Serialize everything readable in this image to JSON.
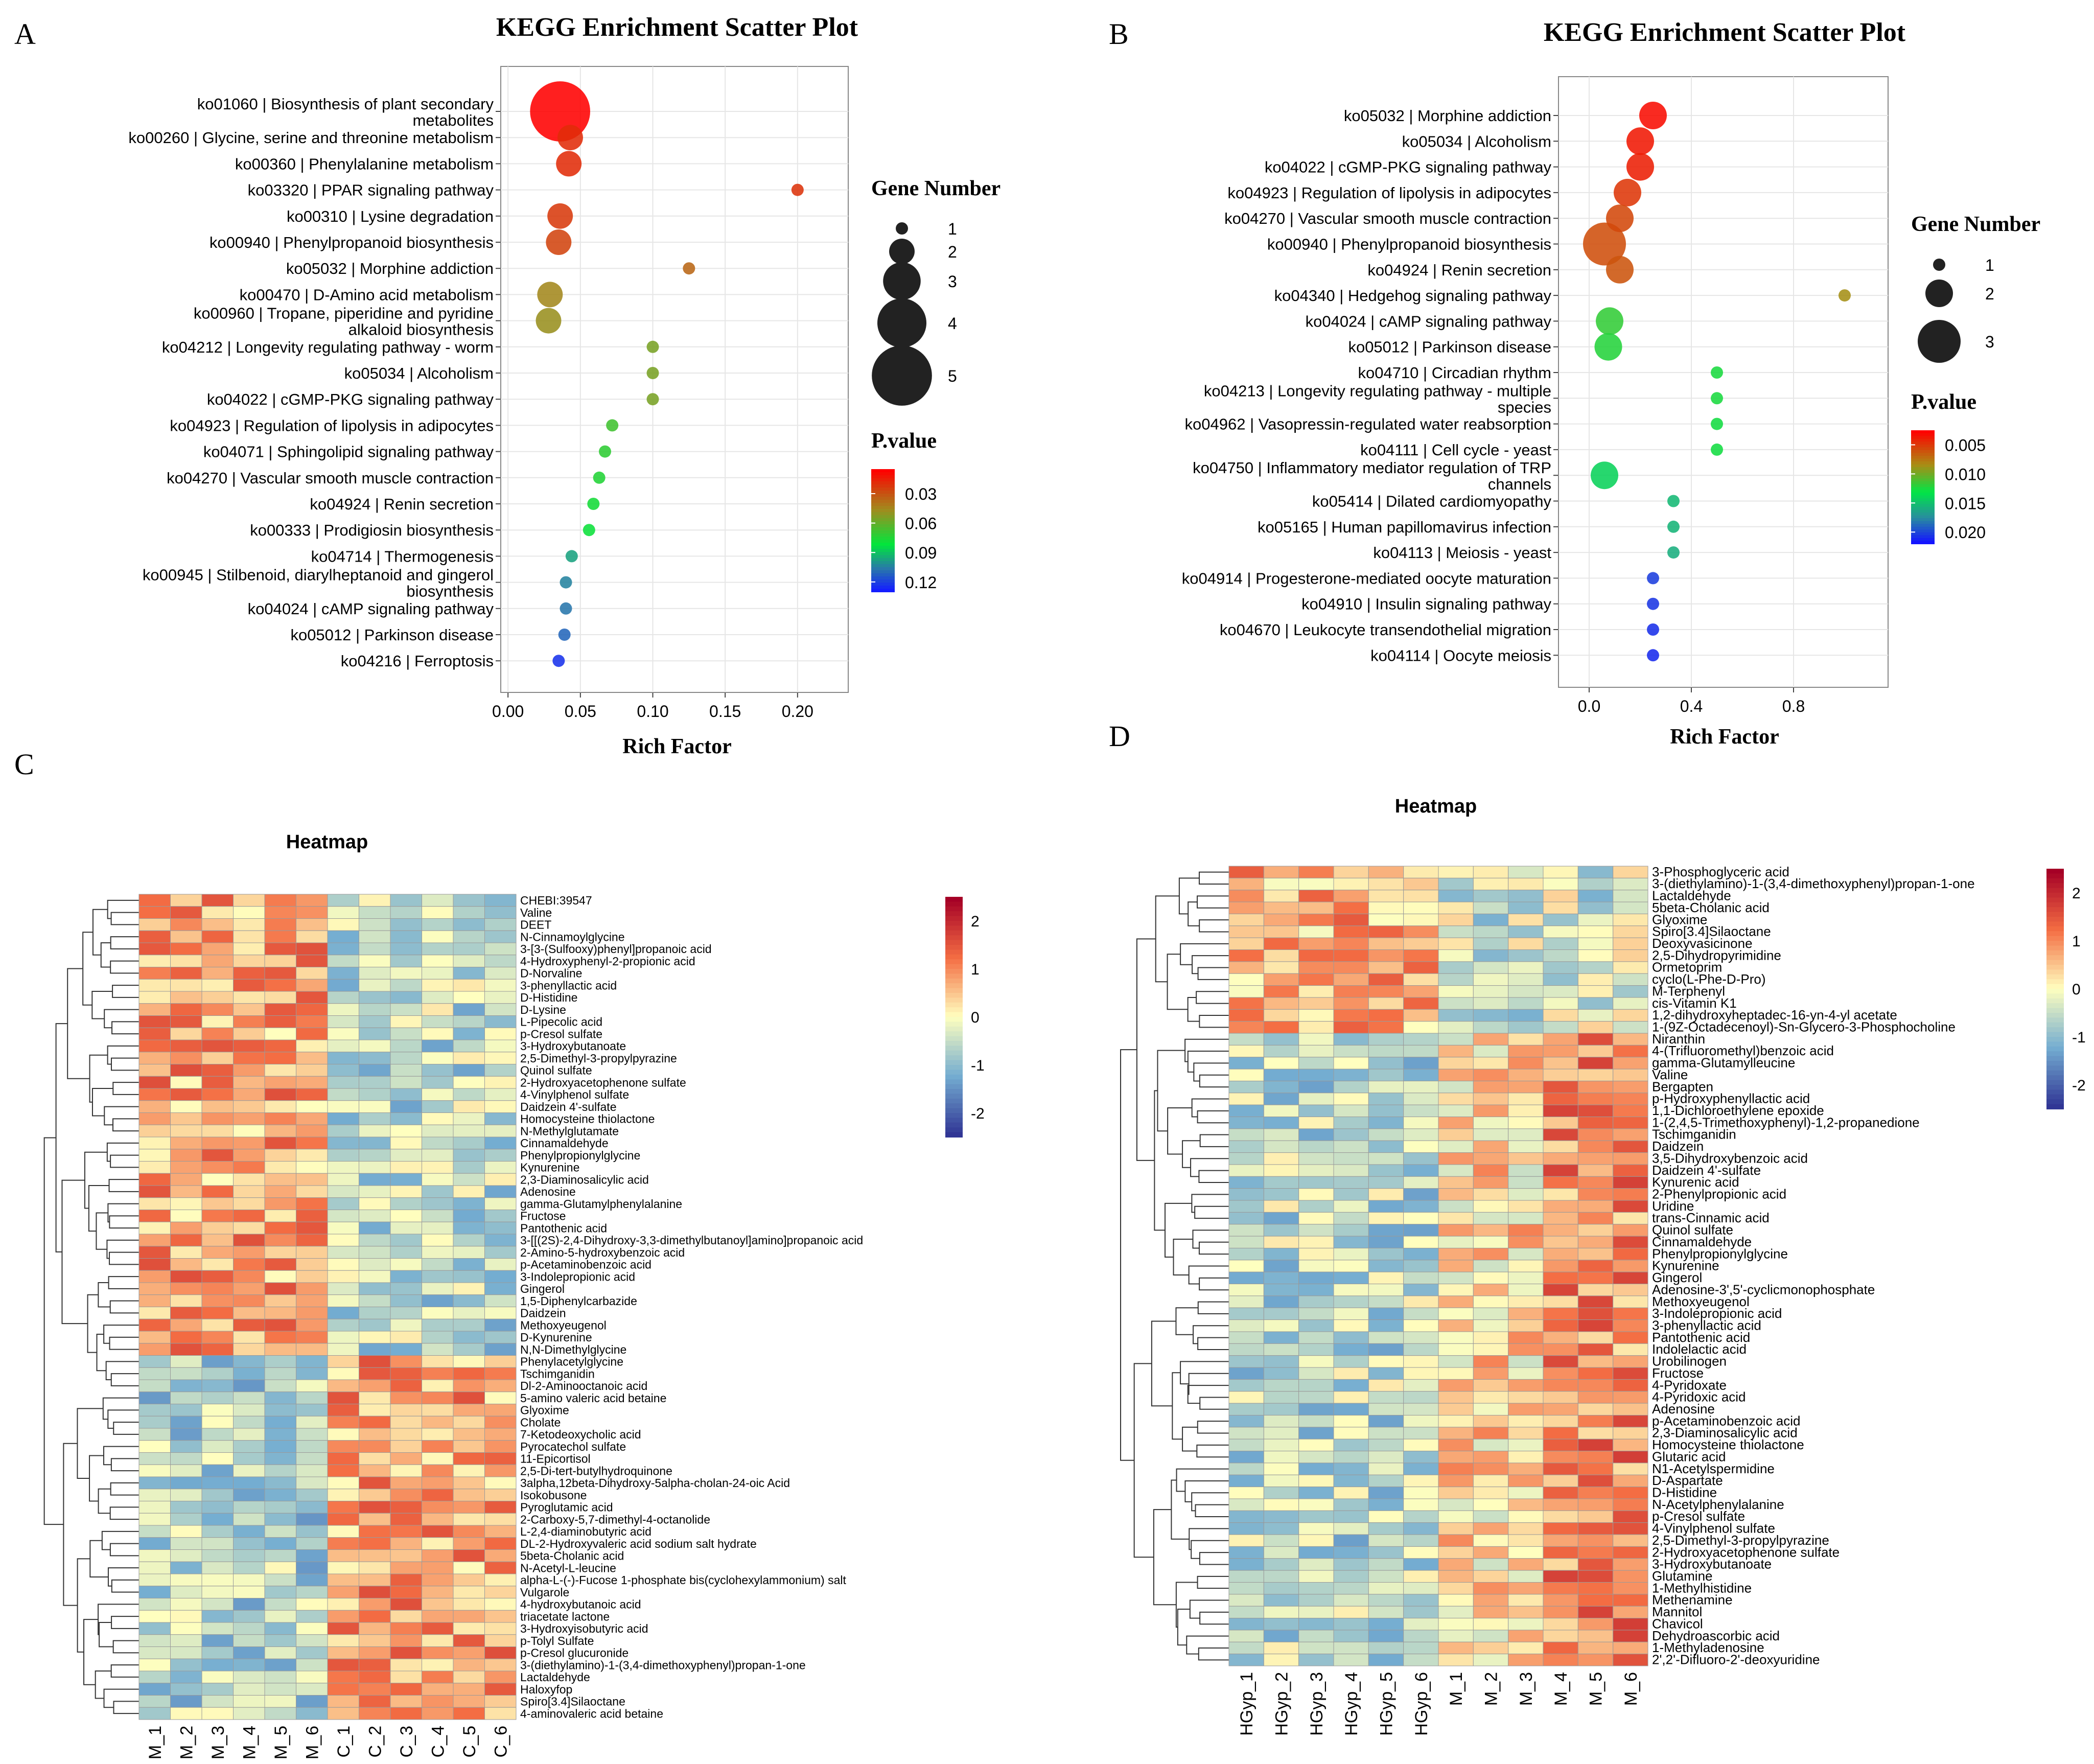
{
  "panel_labels": {
    "a": "A",
    "b": "B",
    "c": "C",
    "d": "D"
  },
  "chart_data": [
    {
      "panel": "A",
      "type": "scatter",
      "title": "KEGG Enrichment Scatter Plot",
      "xlabel": "Rich Factor",
      "xlim": [
        -0.005,
        0.235
      ],
      "xticks": [
        "0.00",
        "0.05",
        "0.10",
        "0.15",
        "0.20"
      ],
      "size_legend_title": "Gene Number",
      "size_legend": [
        "1",
        "2",
        "3",
        "4",
        "5"
      ],
      "color_legend_title": "P.value",
      "color_legend": [
        "0.03",
        "0.06",
        "0.09",
        "0.12"
      ],
      "color_range": [
        0.005,
        0.13
      ],
      "points": [
        {
          "label": "ko01060 | Biosynthesis of plant secondary",
          "label2": "metabolites",
          "x": 0.036,
          "genes": 5,
          "p": 0.005
        },
        {
          "label": "ko00260 | Glycine, serine and threonine metabolism",
          "label2": "",
          "x": 0.043,
          "genes": 2,
          "p": 0.018
        },
        {
          "label": "ko00360 | Phenylalanine metabolism",
          "label2": "",
          "x": 0.042,
          "genes": 2,
          "p": 0.018
        },
        {
          "label": "ko03320 | PPAR signaling pathway",
          "label2": "",
          "x": 0.2,
          "genes": 1,
          "p": 0.02
        },
        {
          "label": "ko00310 | Lysine degradation",
          "label2": "",
          "x": 0.036,
          "genes": 2,
          "p": 0.022
        },
        {
          "label": "ko00940 | Phenylpropanoid biosynthesis",
          "label2": "",
          "x": 0.035,
          "genes": 2,
          "p": 0.025
        },
        {
          "label": "ko05032 | Morphine addiction",
          "label2": "",
          "x": 0.125,
          "genes": 1,
          "p": 0.035
        },
        {
          "label": "ko00470 | D-Amino acid metabolism",
          "label2": "",
          "x": 0.029,
          "genes": 2,
          "p": 0.045
        },
        {
          "label": "ko00960 | Tropane, piperidine and pyridine",
          "label2": "alkaloid biosynthesis",
          "x": 0.028,
          "genes": 2,
          "p": 0.048
        },
        {
          "label": "ko04212 | Longevity regulating pathway - worm",
          "label2": "",
          "x": 0.1,
          "genes": 1,
          "p": 0.055
        },
        {
          "label": "ko05034 | Alcoholism",
          "label2": "",
          "x": 0.1,
          "genes": 1,
          "p": 0.055
        },
        {
          "label": "ko04022 | cGMP-PKG signaling pathway",
          "label2": "",
          "x": 0.1,
          "genes": 1,
          "p": 0.055
        },
        {
          "label": "ko04923 | Regulation of lipolysis in adipocytes",
          "label2": "",
          "x": 0.072,
          "genes": 1,
          "p": 0.068
        },
        {
          "label": "ko04071 | Sphingolipid signaling pathway",
          "label2": "",
          "x": 0.067,
          "genes": 1,
          "p": 0.072
        },
        {
          "label": "ko04270 | Vascular smooth muscle contraction",
          "label2": "",
          "x": 0.063,
          "genes": 1,
          "p": 0.075
        },
        {
          "label": "ko04924 | Renin secretion",
          "label2": "",
          "x": 0.059,
          "genes": 1,
          "p": 0.078
        },
        {
          "label": "ko00333 | Prodigiosin biosynthesis",
          "label2": "",
          "x": 0.056,
          "genes": 1,
          "p": 0.08
        },
        {
          "label": "ko04714 | Thermogenesis",
          "label2": "",
          "x": 0.044,
          "genes": 1,
          "p": 0.098
        },
        {
          "label": "ko00945 | Stilbenoid, diarylheptanoid and gingerol",
          "label2": "biosynthesis",
          "x": 0.04,
          "genes": 1,
          "p": 0.105
        },
        {
          "label": "ko04024 | cAMP signaling pathway",
          "label2": "",
          "x": 0.04,
          "genes": 1,
          "p": 0.108
        },
        {
          "label": "ko05012 | Parkinson disease",
          "label2": "",
          "x": 0.039,
          "genes": 1,
          "p": 0.112
        },
        {
          "label": "ko04216 | Ferroptosis",
          "label2": "",
          "x": 0.035,
          "genes": 1,
          "p": 0.125
        }
      ]
    },
    {
      "panel": "B",
      "type": "scatter",
      "title": "KEGG Enrichment Scatter Plot",
      "xlabel": "Rich Factor",
      "xlim": [
        -0.12,
        1.17
      ],
      "xticks": [
        "0.0",
        "0.4",
        "0.8"
      ],
      "size_legend_title": "Gene Number",
      "size_legend": [
        "1",
        "2",
        "3"
      ],
      "color_legend_title": "P.value",
      "color_legend": [
        "0.005",
        "0.010",
        "0.015",
        "0.020"
      ],
      "color_range": [
        0.0025,
        0.022
      ],
      "points": [
        {
          "label": "ko05032 | Morphine addiction",
          "label2": "",
          "x": 0.25,
          "genes": 2,
          "p": 0.003
        },
        {
          "label": "ko05034 | Alcoholism",
          "label2": "",
          "x": 0.2,
          "genes": 2,
          "p": 0.0035
        },
        {
          "label": "ko04022 | cGMP-PKG signaling pathway",
          "label2": "",
          "x": 0.2,
          "genes": 2,
          "p": 0.0038
        },
        {
          "label": "ko04923 | Regulation of lipolysis in adipocytes",
          "label2": "",
          "x": 0.15,
          "genes": 2,
          "p": 0.0048
        },
        {
          "label": "ko04270 | Vascular smooth muscle contraction",
          "label2": "",
          "x": 0.12,
          "genes": 2,
          "p": 0.0055
        },
        {
          "label": "ko00940 | Phenylpropanoid biosynthesis",
          "label2": "",
          "x": 0.06,
          "genes": 3,
          "p": 0.0058
        },
        {
          "label": "ko04924 | Renin secretion",
          "label2": "",
          "x": 0.12,
          "genes": 2,
          "p": 0.006
        },
        {
          "label": "ko04340 | Hedgehog signaling pathway",
          "label2": "",
          "x": 1.0,
          "genes": 1,
          "p": 0.0085
        },
        {
          "label": "ko04024 | cAMP signaling pathway",
          "label2": "",
          "x": 0.08,
          "genes": 2,
          "p": 0.0118
        },
        {
          "label": "ko05012 | Parkinson disease",
          "label2": "",
          "x": 0.075,
          "genes": 2,
          "p": 0.0122
        },
        {
          "label": "ko04710 | Circadian rhythm",
          "label2": "",
          "x": 0.5,
          "genes": 1,
          "p": 0.0125
        },
        {
          "label": "ko04213 | Longevity regulating pathway - multiple",
          "label2": "species",
          "x": 0.5,
          "genes": 1,
          "p": 0.0125
        },
        {
          "label": "ko04962 | Vasopressin-regulated water reabsorption",
          "label2": "",
          "x": 0.5,
          "genes": 1,
          "p": 0.0127
        },
        {
          "label": "ko04111 | Cell cycle - yeast",
          "label2": "",
          "x": 0.5,
          "genes": 1,
          "p": 0.0127
        },
        {
          "label": "ko04750 | Inflammatory mediator regulation of TRP",
          "label2": "channels",
          "x": 0.06,
          "genes": 2,
          "p": 0.0142
        },
        {
          "label": "ko05414 | Dilated cardiomyopathy",
          "label2": "",
          "x": 0.33,
          "genes": 1,
          "p": 0.0155
        },
        {
          "label": "ko05165 | Human papillomavirus infection",
          "label2": "",
          "x": 0.33,
          "genes": 1,
          "p": 0.0157
        },
        {
          "label": "ko04113 | Meiosis - yeast",
          "label2": "",
          "x": 0.33,
          "genes": 1,
          "p": 0.016
        },
        {
          "label": "ko04914 | Progesterone-mediated oocyte maturation",
          "label2": "",
          "x": 0.25,
          "genes": 1,
          "p": 0.0205
        },
        {
          "label": "ko04910 | Insulin signaling pathway",
          "label2": "",
          "x": 0.25,
          "genes": 1,
          "p": 0.0208
        },
        {
          "label": "ko04670 | Leukocyte transendothelial migration",
          "label2": "",
          "x": 0.25,
          "genes": 1,
          "p": 0.021
        },
        {
          "label": "ko04114 | Oocyte meiosis",
          "label2": "",
          "x": 0.25,
          "genes": 1,
          "p": 0.0212
        }
      ]
    },
    {
      "panel": "C",
      "type": "heatmap",
      "title": "Heatmap",
      "color_ticks": [
        "2",
        "1",
        "0",
        "-1",
        "-2"
      ],
      "columns": [
        "M_1",
        "M_2",
        "M_3",
        "M_4",
        "M_5",
        "M_6",
        "C_1",
        "C_2",
        "C_3",
        "C_4",
        "C_5",
        "C_6"
      ],
      "rows": [
        "CHEBI:39547",
        "Valine",
        "DEET",
        "N-Cinnamoylglycine",
        "3-[3-(Sulfooxy)phenyl]propanoic acid",
        "4-Hydroxyphenyl-2-propionic acid",
        "D-Norvaline",
        "3-phenyllactic acid",
        "D-Histidine",
        "D-Lysine",
        "L-Pipecolic acid",
        "p-Cresol sulfate",
        "3-Hydroxybutanoate",
        "2,5-Dimethyl-3-propylpyrazine",
        "Quinol sulfate",
        "2-Hydroxyacetophenone sulfate",
        "4-Vinylphenol sulfate",
        "Daidzein 4'-sulfate",
        "Homocysteine thiolactone",
        "N-Methylglutamate",
        "Cinnamaldehyde",
        "Phenylpropionylglycine",
        "Kynurenine",
        "2,3-Diaminosalicylic acid",
        "Adenosine",
        "gamma-Glutamylphenylalanine",
        "Fructose",
        "Pantothenic acid",
        "3-[[(2S)-2,4-Dihydroxy-3,3-dimethylbutanoyl]amino]propanoic acid",
        "2-Amino-5-hydroxybenzoic acid",
        "p-Acetaminobenzoic acid",
        "3-Indolepropionic acid",
        "Gingerol",
        "1,5-Diphenylcarbazide",
        "Daidzein",
        "Methoxyeugenol",
        "D-Kynurenine",
        "N,N-Dimethylglycine",
        "Phenylacetylglycine",
        "Tschimganidin",
        "Dl-2-Aminooctanoic acid",
        "5-amino valeric acid betaine",
        "Glyoxime",
        "Cholate",
        "7-Ketodeoxycholic acid",
        "Pyrocatechol sulfate",
        "11-Epicortisol",
        "2,5-Di-tert-butylhydroquinone",
        "3alpha,12beta-Dihydroxy-5alpha-cholan-24-oic Acid",
        "Isokobusone",
        "Pyroglutamic acid",
        "2-Carboxy-5,7-dimethyl-4-octanolide",
        "L-2,4-diaminobutyric acid",
        "DL-2-Hydroxyvaleric acid sodium salt hydrate",
        "5beta-Cholanic acid",
        "N-Acetyl-L-leucine",
        "alpha-L-(-)-Fucose 1-phosphate bis(cyclohexylammonium) salt",
        "Vulgarole",
        "4-hydroxybutanoic acid",
        "triacetate lactone",
        "3-Hydroxyisobutyric acid",
        "p-Tolyl Sulfate",
        "p-Cresol glucuronide",
        "3-(diethylamino)-1-(3,4-dimethoxyphenyl)propan-1-one",
        "Lactaldehyde",
        "Haloxyfop",
        "Spiro[3.4]Silaoctane",
        "4-aminovaleric acid betaine"
      ]
    },
    {
      "panel": "D",
      "type": "heatmap",
      "title": "Heatmap",
      "color_ticks": [
        "2",
        "1",
        "0",
        "-1",
        "-2"
      ],
      "columns": [
        "HGyp_1",
        "HGyp_2",
        "HGyp_3",
        "HGyp_4",
        "HGyp_5",
        "HGyp_6",
        "M_1",
        "M_2",
        "M_3",
        "M_4",
        "M_5",
        "M_6"
      ],
      "rows": [
        "3-Phosphoglyceric acid",
        "3-(diethylamino)-1-(3,4-dimethoxyphenyl)propan-1-one",
        "Lactaldehyde",
        "5beta-Cholanic acid",
        "Glyoxime",
        "Spiro[3.4]Silaoctane",
        "Deoxyvasicinone",
        "2,5-Dihydropyrimidine",
        "Ormetoprim",
        "cyclo(L-Phe-D-Pro)",
        "M-Terphenyl",
        "cis-Vitamin K1",
        "1,2-dihydroxyheptadec-16-yn-4-yl acetate",
        "1-(9Z-Octadecenoyl)-Sn-Glycero-3-Phosphocholine",
        "Niranthin",
        "4-(Trifluoromethyl)benzoic acid",
        "gamma-Glutamylleucine",
        "Valine",
        "Bergapten",
        "p-Hydroxyphenyllactic acid",
        "1,1-Dichloroethylene epoxide",
        "1-(2,4,5-Trimethoxyphenyl)-1,2-propanedione",
        "Tschimganidin",
        "Daidzein",
        "3,5-Dihydroxybenzoic acid",
        "Daidzein 4'-sulfate",
        "Kynurenic acid",
        "2-Phenylpropionic acid",
        "Uridine",
        "trans-Cinnamic acid",
        "Quinol sulfate",
        "Cinnamaldehyde",
        "Phenylpropionylglycine",
        "Kynurenine",
        "Gingerol",
        "Adenosine-3',5'-cyclicmonophosphate",
        "Methoxyeugenol",
        "3-Indolepropionic acid",
        "3-phenyllactic acid",
        "Pantothenic acid",
        "Indolelactic acid",
        "Urobilinogen",
        "Fructose",
        "4-Pyridoxate",
        "4-Pyridoxic acid",
        "Adenosine",
        "p-Acetaminobenzoic acid",
        "2,3-Diaminosalicylic acid",
        "Homocysteine thiolactone",
        "Glutaric acid",
        "N1-Acetylspermidine",
        "D-Aspartate",
        "D-Histidine",
        "N-Acetylphenylalanine",
        "p-Cresol sulfate",
        "4-Vinylphenol sulfate",
        "2,5-Dimethyl-3-propylpyrazine",
        "2-Hydroxyacetophenone sulfate",
        "3-Hydroxybutanoate",
        "Glutamine",
        "1-Methylhistidine",
        "Methenamine",
        "Mannitol",
        "Chavicol",
        "Dehydroascorbic acid",
        "1-Methyladenosine",
        "2',2'-Difluoro-2'-deoxyuridine"
      ]
    }
  ]
}
